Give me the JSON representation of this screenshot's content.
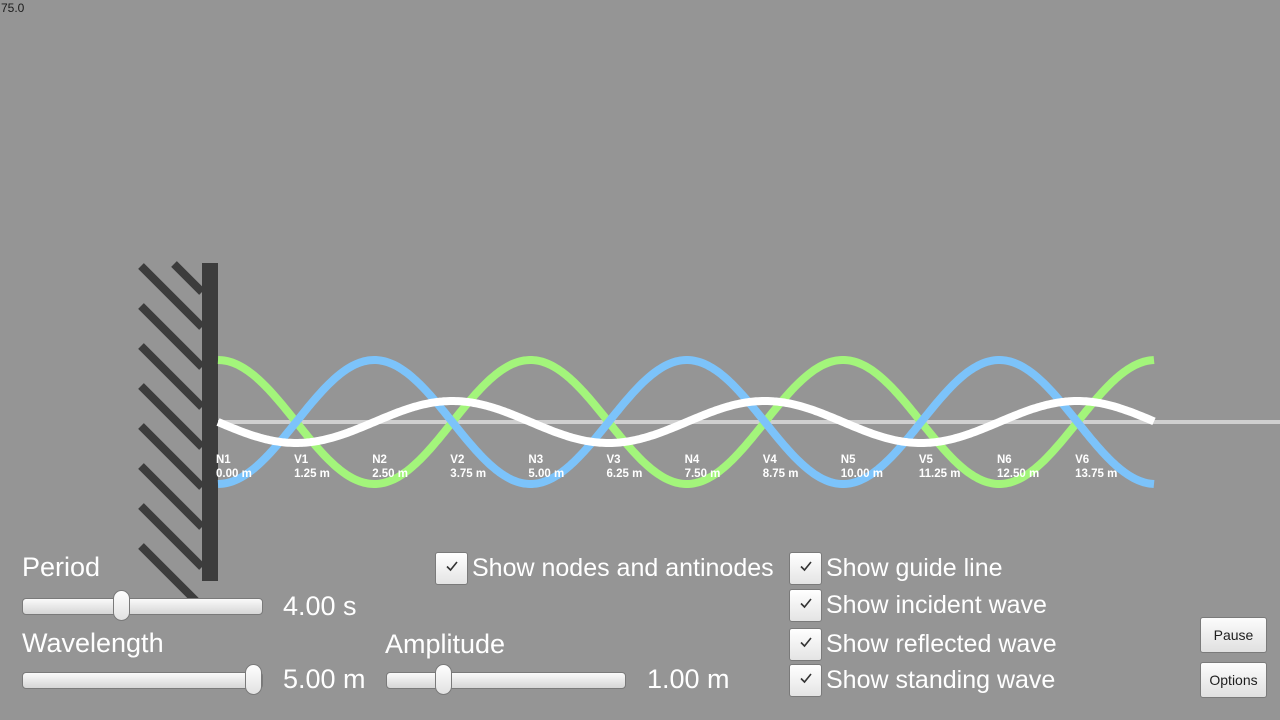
{
  "fps": "75.0",
  "markers": [
    {
      "name": "N1",
      "pos": "0.00 m"
    },
    {
      "name": "V1",
      "pos": "1.25 m"
    },
    {
      "name": "N2",
      "pos": "2.50 m"
    },
    {
      "name": "V2",
      "pos": "3.75 m"
    },
    {
      "name": "N3",
      "pos": "5.00 m"
    },
    {
      "name": "V3",
      "pos": "6.25 m"
    },
    {
      "name": "N4",
      "pos": "7.50 m"
    },
    {
      "name": "V4",
      "pos": "8.75 m"
    },
    {
      "name": "N5",
      "pos": "10.00 m"
    },
    {
      "name": "V5",
      "pos": "11.25 m"
    },
    {
      "name": "N6",
      "pos": "12.50 m"
    },
    {
      "name": "V6",
      "pos": "13.75 m"
    }
  ],
  "controls": {
    "period": {
      "label": "Period",
      "value": "4.00 s",
      "fraction": 0.41
    },
    "wavelength": {
      "label": "Wavelength",
      "value": "5.00 m",
      "fraction": 1.0
    },
    "amplitude": {
      "label": "Amplitude",
      "value": "1.00 m",
      "fraction": 0.22
    }
  },
  "toggles": {
    "nodes": {
      "label": "Show nodes and antinodes",
      "checked": true
    },
    "guide": {
      "label": "Show guide line",
      "checked": true
    },
    "incident": {
      "label": "Show incident wave",
      "checked": true
    },
    "reflected": {
      "label": "Show reflected wave",
      "checked": true
    },
    "standing": {
      "label": "Show standing wave",
      "checked": true
    }
  },
  "buttons": {
    "pause": "Pause",
    "options": "Options"
  },
  "colors": {
    "background": "#959595",
    "incident": "#a3f57b",
    "reflected": "#7cc3fa",
    "standing": "#ffffff",
    "guide": "#cfcfcf",
    "wall": "#3c3c3c"
  },
  "icons": {
    "check": "check-icon"
  }
}
